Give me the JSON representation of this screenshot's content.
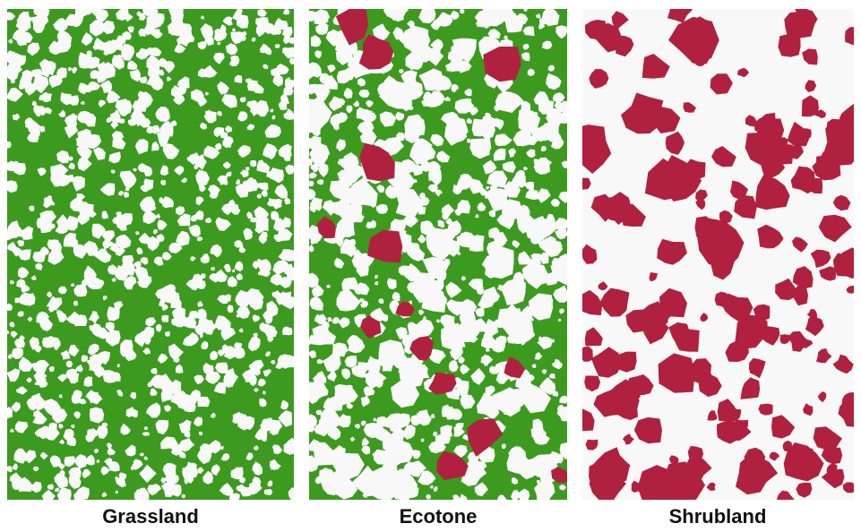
{
  "panels": [
    {
      "label": "Grassland"
    },
    {
      "label": "Ecotone"
    },
    {
      "label": "Shrubland"
    }
  ]
}
